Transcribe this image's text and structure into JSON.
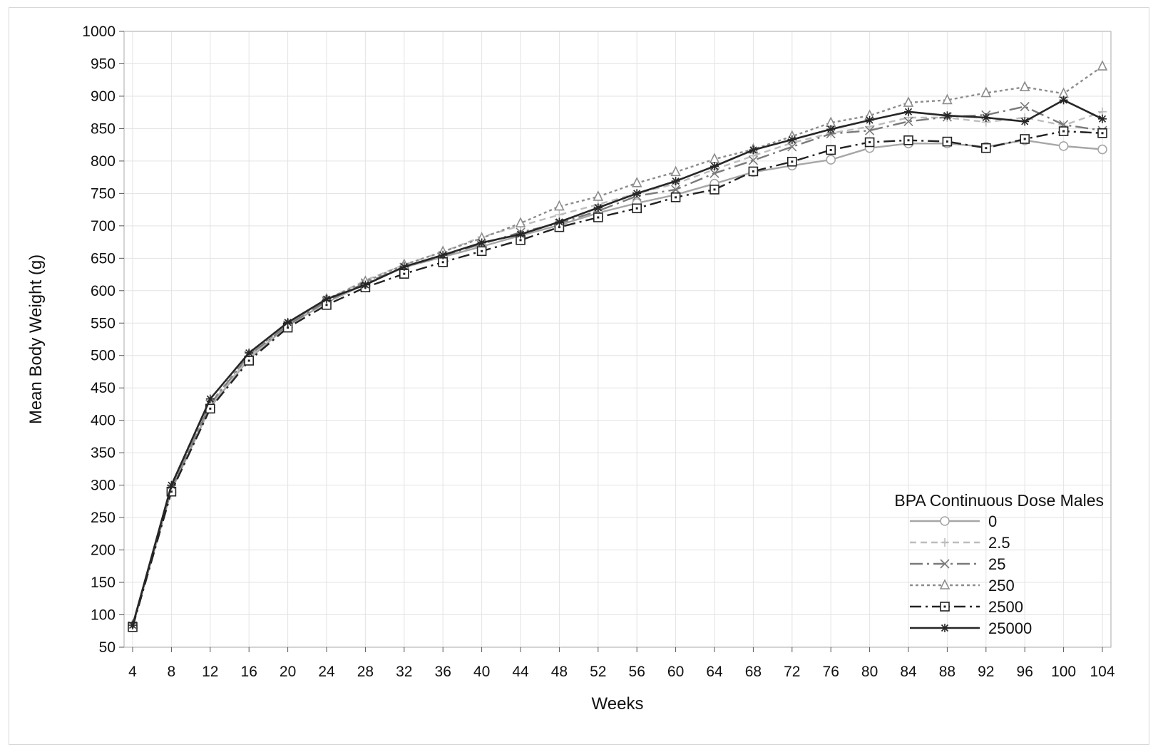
{
  "chart_data": {
    "type": "line",
    "title": "",
    "xlabel": "Weeks",
    "ylabel": "Mean Body Weight (g)",
    "xlim": [
      4,
      104
    ],
    "ylim": [
      50,
      1000
    ],
    "x_ticks": [
      "4",
      "8",
      "12",
      "16",
      "20",
      "24",
      "28",
      "32",
      "36",
      "40",
      "44",
      "48",
      "52",
      "56",
      "60",
      "64",
      "68",
      "72",
      "76",
      "80",
      "84",
      "88",
      "92",
      "96",
      "100",
      "104"
    ],
    "y_ticks": [
      "50",
      "100",
      "150",
      "200",
      "250",
      "300",
      "350",
      "400",
      "450",
      "500",
      "550",
      "600",
      "650",
      "700",
      "750",
      "800",
      "850",
      "900",
      "950",
      "1000"
    ],
    "grid": true,
    "legend": {
      "title": "BPA Continuous Dose Males",
      "placement": "bottom-right"
    },
    "x": [
      4,
      8,
      12,
      16,
      20,
      24,
      28,
      32,
      36,
      40,
      44,
      48,
      52,
      56,
      60,
      64,
      68,
      72,
      76,
      80,
      84,
      88,
      92,
      96,
      100,
      104
    ],
    "series": [
      {
        "name": "0",
        "color": "#a6a6a6",
        "dash": "solid",
        "marker": "circle",
        "values": [
          82,
          292,
          420,
          495,
          546,
          582,
          610,
          636,
          652,
          668,
          685,
          701,
          720,
          735,
          748,
          765,
          783,
          793,
          802,
          820,
          827,
          827,
          822,
          832,
          823,
          818
        ]
      },
      {
        "name": "2.5",
        "color": "#bdbdbd",
        "dash": "dash",
        "marker": "plus",
        "values": [
          84,
          296,
          424,
          497,
          549,
          586,
          616,
          640,
          660,
          683,
          700,
          717,
          733,
          750,
          765,
          787,
          808,
          828,
          843,
          853,
          867,
          867,
          860,
          867,
          855,
          876
        ]
      },
      {
        "name": "25",
        "color": "#7a7a7a",
        "dash": "dashdot",
        "marker": "x",
        "values": [
          83,
          294,
          425,
          500,
          547,
          584,
          612,
          636,
          654,
          672,
          690,
          704,
          723,
          746,
          756,
          781,
          801,
          822,
          842,
          847,
          861,
          868,
          871,
          884,
          856,
          847
        ]
      },
      {
        "name": "250",
        "color": "#8c8c8c",
        "dash": "dot",
        "marker": "triangle",
        "values": [
          84,
          295,
          426,
          501,
          549,
          587,
          614,
          640,
          660,
          681,
          704,
          730,
          745,
          766,
          783,
          803,
          818,
          838,
          859,
          870,
          890,
          894,
          905,
          914,
          904,
          946
        ]
      },
      {
        "name": "2500",
        "color": "#222222",
        "dash": "longdashdot",
        "marker": "square",
        "values": [
          81,
          290,
          418,
          492,
          543,
          578,
          605,
          626,
          644,
          661,
          678,
          698,
          713,
          727,
          744,
          756,
          784,
          799,
          817,
          829,
          832,
          830,
          820,
          834,
          846,
          843
        ]
      },
      {
        "name": "25000",
        "color": "#262626",
        "dash": "solid",
        "marker": "star",
        "values": [
          84,
          300,
          433,
          504,
          551,
          587,
          609,
          637,
          655,
          674,
          687,
          706,
          728,
          750,
          769,
          792,
          817,
          833,
          849,
          863,
          876,
          870,
          867,
          861,
          894,
          865
        ]
      }
    ]
  }
}
